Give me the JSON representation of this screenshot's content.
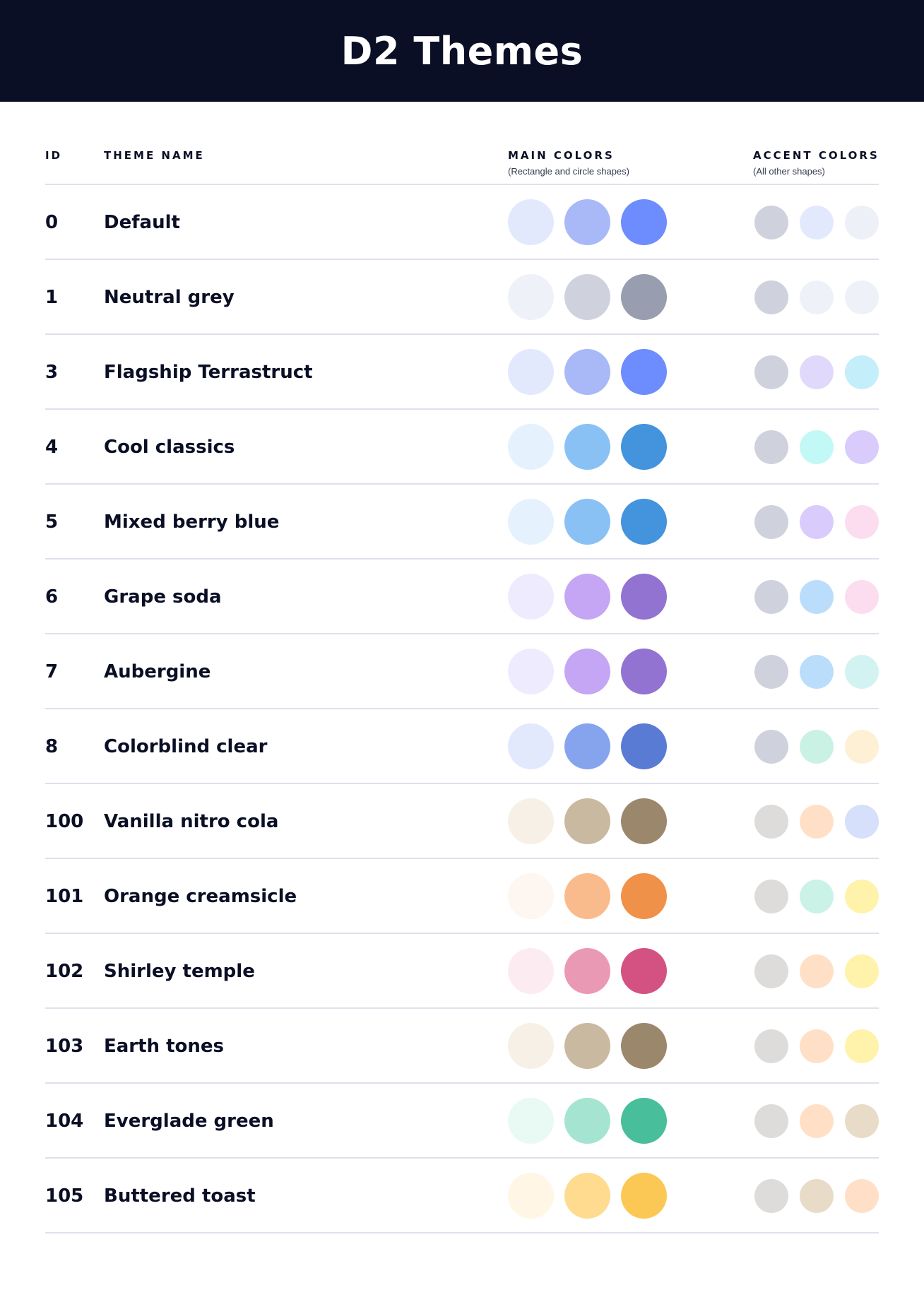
{
  "title": "D2 Themes",
  "columns": {
    "id": "ID",
    "theme_name": "THEME NAME",
    "main_colors": "MAIN COLORS",
    "main_colors_sub": "(Rectangle and circle shapes)",
    "accent_colors": "ACCENT COLORS",
    "accent_colors_sub": "(All other shapes)"
  },
  "themes": [
    {
      "id": "0",
      "name": "Default",
      "main": [
        "#E3E9FD",
        "#A9B8F7",
        "#6D8CFD"
      ],
      "accent": [
        "#CFD2DD",
        "#E3E9FD",
        "#EDF0F6"
      ]
    },
    {
      "id": "1",
      "name": "Neutral grey",
      "main": [
        "#EEF1F8",
        "#CFD2DD",
        "#989EAF"
      ],
      "accent": [
        "#CFD2DD",
        "#EEF1F8",
        "#EEF1F8"
      ]
    },
    {
      "id": "3",
      "name": "Flagship Terrastruct",
      "main": [
        "#E3E9FD",
        "#A9B8F7",
        "#6D8CFD"
      ],
      "accent": [
        "#CFD2DD",
        "#E1D9FC",
        "#C5EEFB"
      ]
    },
    {
      "id": "4",
      "name": "Cool classics",
      "main": [
        "#E5F2FD",
        "#89C1F4",
        "#4393DD"
      ],
      "accent": [
        "#CFD2DD",
        "#C2F8F5",
        "#D9CCFC"
      ]
    },
    {
      "id": "5",
      "name": "Mixed berry blue",
      "main": [
        "#E5F2FD",
        "#89C1F4",
        "#4393DD"
      ],
      "accent": [
        "#CFD2DD",
        "#D9CCFC",
        "#FCDDF0"
      ]
    },
    {
      "id": "6",
      "name": "Grape soda",
      "main": [
        "#EFEBFE",
        "#C4A6F4",
        "#9373D1"
      ],
      "accent": [
        "#CFD2DD",
        "#BADDFC",
        "#FCDDF0"
      ]
    },
    {
      "id": "7",
      "name": "Aubergine",
      "main": [
        "#EFEBFE",
        "#C4A6F4",
        "#9373D1"
      ],
      "accent": [
        "#CFD2DD",
        "#BADDFC",
        "#D2F3F1"
      ]
    },
    {
      "id": "8",
      "name": "Colorblind clear",
      "main": [
        "#E3E9FD",
        "#86A3EE",
        "#5A7BD4"
      ],
      "accent": [
        "#CFD2DD",
        "#C9F2E5",
        "#FDF0D5"
      ]
    },
    {
      "id": "100",
      "name": "Vanilla nitro cola",
      "main": [
        "#F7F0E6",
        "#C9B9A1",
        "#9B876C"
      ],
      "accent": [
        "#DDDCDA",
        "#FFE0C7",
        "#D6E0FA"
      ]
    },
    {
      "id": "101",
      "name": "Orange creamsicle",
      "main": [
        "#FEF6F1",
        "#FABB8C",
        "#F0914A"
      ],
      "accent": [
        "#DDDCDA",
        "#CBF2E6",
        "#FFF2AA"
      ]
    },
    {
      "id": "102",
      "name": "Shirley temple",
      "main": [
        "#FCECF1",
        "#EA99B5",
        "#D35282"
      ],
      "accent": [
        "#DDDCDA",
        "#FFE0C7",
        "#FFF2AA"
      ]
    },
    {
      "id": "103",
      "name": "Earth tones",
      "main": [
        "#F7F0E6",
        "#C9B9A1",
        "#9B876C"
      ],
      "accent": [
        "#DDDCDA",
        "#FFE0C7",
        "#FFF2AA"
      ]
    },
    {
      "id": "104",
      "name": "Everglade green",
      "main": [
        "#E8FAF3",
        "#A5E4D1",
        "#48BE9A"
      ],
      "accent": [
        "#DDDCDA",
        "#FFE0C7",
        "#E8DCC9"
      ]
    },
    {
      "id": "105",
      "name": "Buttered toast",
      "main": [
        "#FFF6E6",
        "#FEDB8F",
        "#FCC855"
      ],
      "accent": [
        "#DDDCDA",
        "#E8DCC9",
        "#FFE0C7"
      ]
    }
  ]
}
